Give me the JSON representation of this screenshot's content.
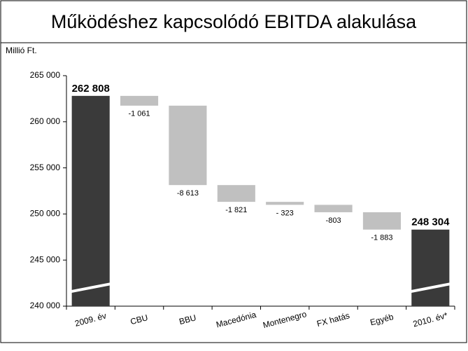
{
  "chart_data": {
    "type": "waterfall",
    "title": "Működéshez kapcsolódó EBITDA alakulása",
    "y_axis_label": "Millió Ft.",
    "categories": [
      "2009. év",
      "CBU",
      "BBU",
      "Macedónia",
      "Montenegro",
      "FX hatás",
      "Egyéb",
      "2010. év*"
    ],
    "values": [
      262808,
      -1061,
      -8613,
      -1821,
      -323,
      -803,
      -1883,
      248304
    ],
    "value_labels": [
      "262 808",
      "-1 061",
      "-8 613",
      "-1 821",
      "- 323",
      "-803",
      "-1 883",
      "248 304"
    ],
    "colors": [
      "#3a3a3a",
      "#c0c0c0",
      "#c0c0c0",
      "#c0c0c0",
      "#c0c0c0",
      "#c0c0c0",
      "#c0c0c0",
      "#3a3a3a"
    ],
    "ylim": [
      240000,
      265000
    ],
    "yticks": [
      {
        "value": 240000,
        "label": "240 000"
      },
      {
        "value": 245000,
        "label": "245 000"
      },
      {
        "value": 250000,
        "label": "250 000"
      },
      {
        "value": 255000,
        "label": "255 000"
      },
      {
        "value": 260000,
        "label": "260 000"
      },
      {
        "value": 265000,
        "label": "265 000"
      }
    ]
  }
}
